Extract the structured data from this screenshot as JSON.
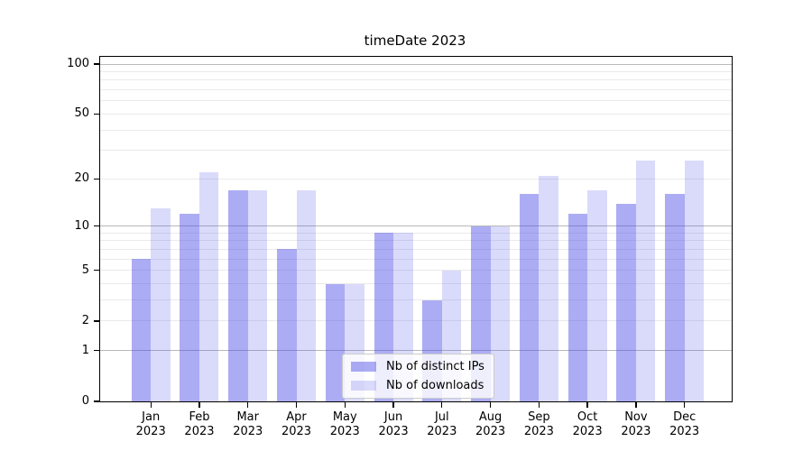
{
  "title": "timeDate 2023",
  "chart_data": {
    "type": "bar",
    "title": "timeDate 2023",
    "xlabel": "",
    "ylabel": "",
    "y_scale": "log1p",
    "ylim": [
      0,
      110
    ],
    "y_ticks": [
      0,
      1,
      2,
      5,
      10,
      20,
      50,
      100
    ],
    "grid_major": [
      1,
      10,
      100
    ],
    "grid_minor": [
      2,
      3,
      4,
      5,
      6,
      7,
      8,
      9,
      20,
      30,
      40,
      50,
      60,
      70,
      80,
      90
    ],
    "categories": [
      "Jan",
      "Feb",
      "Mar",
      "Apr",
      "May",
      "Jun",
      "Jul",
      "Aug",
      "Sep",
      "Oct",
      "Nov",
      "Dec"
    ],
    "year_label": "2023",
    "legend_position": "lower center",
    "series": [
      {
        "name": "Nb of distinct IPs",
        "color": "rgba(70,70,230,0.45)",
        "color_hex_on_white": "#acacf4",
        "values": [
          6,
          12,
          17,
          7,
          4,
          9,
          3,
          10,
          16,
          12,
          14,
          16
        ]
      },
      {
        "name": "Nb of downloads",
        "color": "rgba(70,70,230,0.20)",
        "color_hex_on_white": "#dadaf9",
        "values": [
          13,
          22,
          17,
          17,
          4,
          9,
          5,
          10,
          21,
          17,
          26,
          26
        ]
      }
    ]
  }
}
